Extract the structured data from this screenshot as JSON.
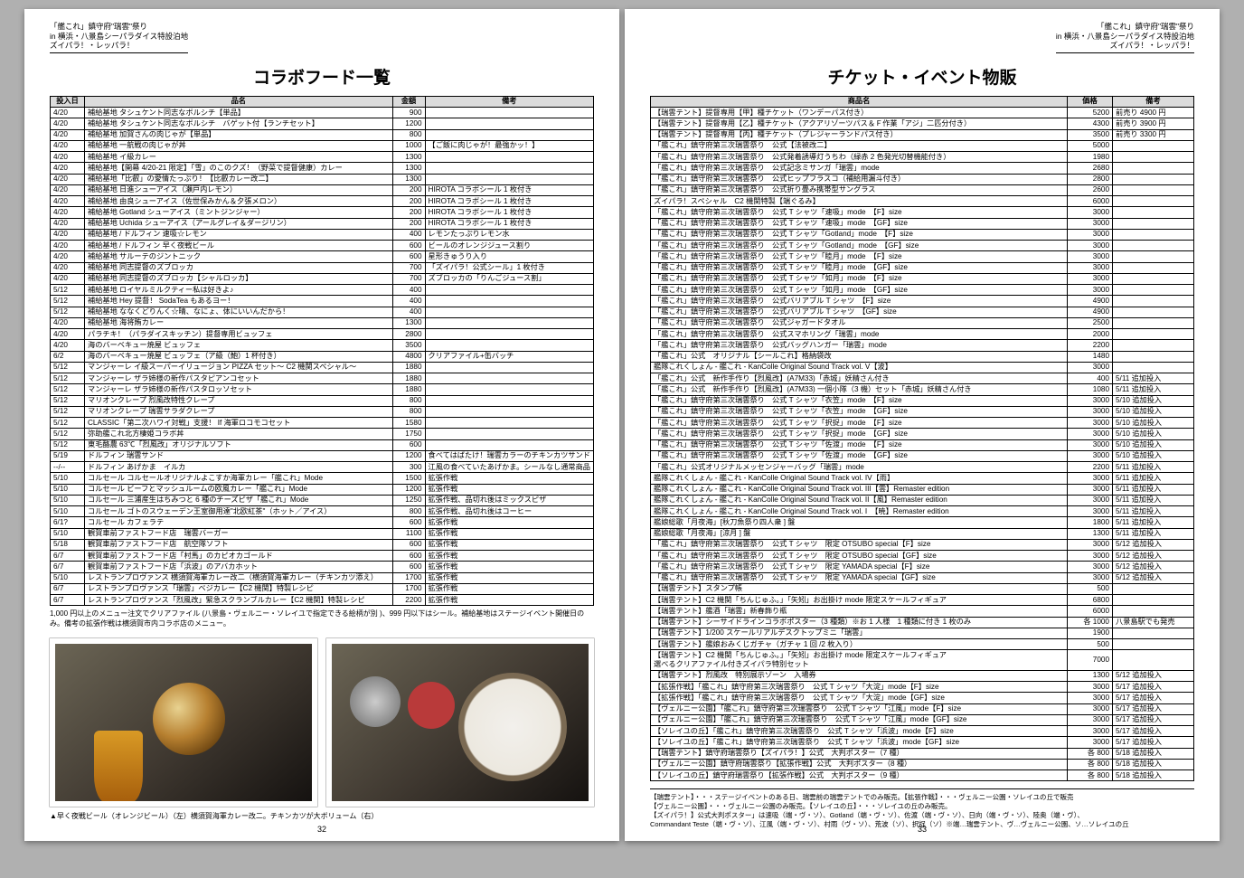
{
  "header": {
    "l1": "「艦これ」鎮守府\"瑞雲\"祭り",
    "l2": "in 横浜・八景島シーパラダイス特設泊地",
    "l3": "ズイパラ！・レッパラ！"
  },
  "left": {
    "title": "コラボフード一覧",
    "cols": [
      "投入日",
      "品名",
      "金額",
      "備考"
    ],
    "rows": [
      [
        "4/20",
        "補給基地 タシュケント同志なボルシチ【単品】",
        "900",
        ""
      ],
      [
        "4/20",
        "補給基地 タシュケント同志なボルシチ　バゲット付【ランチセット】",
        "1200",
        ""
      ],
      [
        "4/20",
        "補給基地 加賀さんの肉じゃが【単品】",
        "800",
        ""
      ],
      [
        "4/20",
        "補給基地 一航戦の肉じゃが丼",
        "1000",
        "【ご飯に肉じゃが！最強かッ！】"
      ],
      [
        "4/20",
        "補給基地 イ級カレー",
        "1300",
        ""
      ],
      [
        "4/20",
        "補給基地【開幕 4/20-21 限定】「雪」のこのクズ！（野菜で提督健康）カレー",
        "1300",
        ""
      ],
      [
        "4/20",
        "補給基地「比叡」の愛情たっぷり！【比叡カレー改二】",
        "1300",
        ""
      ],
      [
        "4/20",
        "補給基地 日進シューアイス（瀬戸内レモン）",
        "200",
        "HIROTA コラボシール 1 枚付き"
      ],
      [
        "4/20",
        "補給基地 由良シューアイス（佐世保みかん＆夕張メロン）",
        "200",
        "HIROTA コラボシール 1 枚付き"
      ],
      [
        "4/20",
        "補給基地 Gotland シューアイス（ミントジンジャー）",
        "200",
        "HIROTA コラボシール 1 枚付き"
      ],
      [
        "4/20",
        "補給基地 Uchida シューアイス（アールグレイ＆ダージリン）",
        "200",
        "HIROTA コラボシール 1 枚付き"
      ],
      [
        "4/20",
        "補給基地 / ドルフィン 速吸☆レモン",
        "400",
        "レモンたっぷりレモン水"
      ],
      [
        "4/20",
        "補給基地 / ドルフィン 早く夜戦ビール",
        "600",
        "ビールのオレンジジュース割り"
      ],
      [
        "4/20",
        "補給基地 サルーテのジントニック",
        "600",
        "星形きゅうり入り"
      ],
      [
        "4/20",
        "補給基地 同志提督のズブロッカ",
        "700",
        "「ズイパラ！公式シール」1 枚付き"
      ],
      [
        "4/20",
        "補給基地 同志提督のズブロッカ【シャルロッカ】",
        "700",
        "ズブロッカの「りんごジュース割」"
      ],
      [
        "5/12",
        "補給基地 ロイヤルミルクティー私は好きよ♪",
        "400",
        ""
      ],
      [
        "5/12",
        "補給基地 Hey 提督！ SodaTea もあるヨー！",
        "400",
        ""
      ],
      [
        "5/12",
        "補給基地 ななくどりんく☆晴、なにょ、体にいいんだから！",
        "400",
        ""
      ],
      [
        "4/20",
        "補給基地 海将賄カレー",
        "1300",
        ""
      ],
      [
        "4/20",
        "パラチキ！（パラダイスキッチン）提督専用ビュッフェ",
        "2800",
        ""
      ],
      [
        "4/20",
        "海のバーベキュー焼屋 ビュッフェ",
        "3500",
        ""
      ],
      [
        "6/2",
        "海のバーベキュー焼屋 ビュッフェ（ア級（鮑）1 杯付き）",
        "4800",
        "クリアファイル+缶バッチ"
      ],
      [
        "5/12",
        "マンジャーレ イ級スーパーイリュージョン PIZZA セット〜 C2 機関スペシャル〜",
        "1880",
        ""
      ],
      [
        "5/12",
        "マンジャーレ ザラ姉様の新作パスタピアンコセット",
        "1880",
        ""
      ],
      [
        "5/12",
        "マンジャーレ ザラ姉様の新作パスタロッソセット",
        "1880",
        ""
      ],
      [
        "5/12",
        "マリオンクレープ 烈風改特性クレープ",
        "800",
        ""
      ],
      [
        "5/12",
        "マリオンクレープ 瑞雲サラダクレープ",
        "800",
        ""
      ],
      [
        "5/12",
        "CLASSIC「第二次ハワイ対戦」支援！ If 海軍ロコモコセット",
        "1580",
        ""
      ],
      [
        "5/12",
        "弥助艦これ北方棲姫コラボ丼",
        "1750",
        ""
      ],
      [
        "5/12",
        "東毛酪農 63℃「烈風改」オリジナルソフト",
        "600",
        ""
      ],
      [
        "5/19",
        "ドルフィン 瑞雲サンド",
        "1200",
        "食べてはばたけ！瑞雲カラーのチキンカツサンド"
      ],
      [
        "--/--",
        "ドルフィン あげかま　イルカ",
        "300",
        "江風の食べていたあげかま。シールなし通常商品"
      ],
      [
        "5/10",
        "コルセール コルセールオリジナルよこすか海軍カレー「艦これ」Mode",
        "1500",
        "拡張作戦"
      ],
      [
        "5/10",
        "コルセール ビーフとマッシュルームの欧風カレー「艦これ」Mode",
        "1200",
        "拡張作戦"
      ],
      [
        "5/10",
        "コルセール 三浦産生はちみつと 6 種のチーズピザ「艦これ」Mode",
        "1250",
        "拡張作戦、品切れ後はミックスピザ"
      ],
      [
        "5/10",
        "コルセール ゴトのスウェーデン王室御用達\"北欧紅茶\"（ホット／アイス）",
        "800",
        "拡張作戦、品切れ後はコーヒー"
      ],
      [
        "6/1?",
        "コルセール カフェラテ",
        "600",
        "拡張作戦"
      ],
      [
        "5/10",
        "観賀車前ファストフード店　瑞雲バーガー",
        "1100",
        "拡張作戦"
      ],
      [
        "5/18",
        "観賀車前ファストフード店　航空隊ソフト",
        "600",
        "拡張作戦"
      ],
      [
        "6/7",
        "観賀車前ファストフード店「村馬」のカピオカゴールド",
        "600",
        "拡張作戦"
      ],
      [
        "6/7",
        "観賀車前ファストフード店「浜波」のアバカホット",
        "600",
        "拡張作戦"
      ],
      [
        "5/10",
        "レストランプロヴァンス 横須賀海軍カレー改二（横須賀海軍カレー（チキンカツ添え）",
        "1700",
        "拡張作戦"
      ],
      [
        "6/7",
        "レストランプロヴァンス「瑞雲」ベジカレー【C2 機関】特製レシピ",
        "1700",
        "拡張作戦"
      ],
      [
        "6/7",
        "レストランプロヴァンス「烈風改」緊急スクランブルカレー【C2 機関】特製レシピ",
        "2200",
        "拡張作戦"
      ]
    ],
    "footnote": "1,000 円以上のメニュー注文でクリアファイル (八景島・ヴェルニー・ソレイユで指定できる絵柄が別 )、999 円以下はシール。補給基地はステージイベント開催日のみ。備考の拡張作戦は横須賀市内コラボ店のメニュー。",
    "caption": "▲早く夜戦ビール（オレンジビール）（左）横須賀海軍カレー改二。チキンカツが大ボリューム（右）",
    "pagenum": "32"
  },
  "right": {
    "title": "チケット・イベント物販",
    "cols": [
      "商品名",
      "価格",
      "備考"
    ],
    "rows": [
      [
        "【瑞雲テント】提督専用【甲】種チケット（ワンデーパス付き）",
        "5200",
        "前売り 4900 円"
      ],
      [
        "【瑞雲テント】提督専用【乙】種チケット（アクアリゾーツパス＆Ｆ作業「アジ」二匹分付き）",
        "4300",
        "前売り 3900 円"
      ],
      [
        "【瑞雲テント】提督専用【丙】種チケット（プレジャーランドパス付き）",
        "3500",
        "前売り 3300 円"
      ],
      [
        "「艦これ」鎮守府第三次瑞雲祭り　公式【法被改二】",
        "5000",
        ""
      ],
      [
        "「艦これ」鎮守府第三次瑞雲祭り　公式発着誘導灯うちわ（緑赤 2 色発光切替機能付き）",
        "1980",
        ""
      ],
      [
        "「艦これ」鎮守府第三次瑞雲祭り　公式記念ミサンガ「瑞雲」mode",
        "2680",
        ""
      ],
      [
        "「艦これ」鎮守府第三次瑞雲祭り　公式ヒップフラスコ（補給用漏斗付き）",
        "2800",
        ""
      ],
      [
        "「艦これ」鎮守府第三次瑞雲祭り　公式折り畳み携帯型サングラス",
        "2600",
        ""
      ],
      [
        "ズイパラ！スペシャル　C2 機関特製【端ぐるみ】",
        "6000",
        ""
      ],
      [
        "「艦これ」鎮守府第三次瑞雲祭り　公式 T シャツ「速吸」mode　【F】size",
        "3000",
        ""
      ],
      [
        "「艦これ」鎮守府第三次瑞雲祭り　公式 T シャツ「速吸」mode　【GF】size",
        "3000",
        ""
      ],
      [
        "「艦これ」鎮守府第三次瑞雲祭り　公式 T シャツ「Gotland」mode　【F】size",
        "3000",
        ""
      ],
      [
        "「艦これ」鎮守府第三次瑞雲祭り　公式 T シャツ「Gotland」mode　【GF】size",
        "3000",
        ""
      ],
      [
        "「艦これ」鎮守府第三次瑞雲祭り　公式 T シャツ「睦月」mode　【F】size",
        "3000",
        ""
      ],
      [
        "「艦これ」鎮守府第三次瑞雲祭り　公式 T シャツ「睦月」mode　【GF】size",
        "3000",
        ""
      ],
      [
        "「艦これ」鎮守府第三次瑞雲祭り　公式 T シャツ「如月」mode　【F】size",
        "3000",
        ""
      ],
      [
        "「艦これ」鎮守府第三次瑞雲祭り　公式 T シャツ「如月」mode　【GF】size",
        "3000",
        ""
      ],
      [
        "「艦これ」鎮守府第三次瑞雲祭り　公式バリアブル T シャツ　【F】size",
        "4900",
        ""
      ],
      [
        "「艦これ」鎮守府第三次瑞雲祭り　公式バリアブル T シャツ　【GF】size",
        "4900",
        ""
      ],
      [
        "「艦これ」鎮守府第三次瑞雲祭り　公式ジャガードタオル",
        "2500",
        ""
      ],
      [
        "「艦これ」鎮守府第三次瑞雲祭り　公式スマホリング「瑞雲」mode",
        "2000",
        ""
      ],
      [
        "「艦これ」鎮守府第三次瑞雲祭り　公式バッグハンガー「瑞雲」mode",
        "2200",
        ""
      ],
      [
        "「艦これ」公式　オリジナル【シールこれ】格納袋改",
        "1480",
        ""
      ],
      [
        "艦隊これくしょん - 艦これ - KanColle Original Sound Track vol. V【波】",
        "3000",
        ""
      ],
      [
        "「艦これ」公式　新作手作り【烈風改】(A7M33)「赤城」妖精さん付き",
        "400",
        "5/11 追加投入"
      ],
      [
        "「艦これ」公式　新作手作り【烈風改】(A7M33) 一個小隊（3 機）セット「赤城」妖精さん付き",
        "1080",
        "5/11 追加投入"
      ],
      [
        "「艦これ」鎮守府第三次瑞雲祭り　公式 T シャツ「衣笠」mode　【F】size",
        "3000",
        "5/10 追加投入"
      ],
      [
        "「艦これ」鎮守府第三次瑞雲祭り　公式 T シャツ「衣笠」mode　【GF】size",
        "3000",
        "5/10 追加投入"
      ],
      [
        "「艦これ」鎮守府第三次瑞雲祭り　公式 T シャツ「択捉」mode　【F】size",
        "3000",
        "5/10 追加投入"
      ],
      [
        "「艦これ」鎮守府第三次瑞雲祭り　公式 T シャツ「択捉」mode　【GF】size",
        "3000",
        "5/10 追加投入"
      ],
      [
        "「艦これ」鎮守府第三次瑞雲祭り　公式 T シャツ「佐渡」mode　【F】size",
        "3000",
        "5/10 追加投入"
      ],
      [
        "「艦これ」鎮守府第三次瑞雲祭り　公式 T シャツ「佐渡」mode　【GF】size",
        "3000",
        "5/10 追加投入"
      ],
      [
        "「艦これ」公式オリジナルメッセンジャーバッグ「瑞雲」mode",
        "2200",
        "5/11 追加投入"
      ],
      [
        "艦隊これくしょん - 艦これ - KanColle Original Sound Track vol. IV【雨】",
        "3000",
        "5/11 追加投入"
      ],
      [
        "艦隊これくしょん - 艦これ - KanColle Original Sound Track vol. III【雲】Remaster edition",
        "3000",
        "5/11 追加投入"
      ],
      [
        "艦隊これくしょん - 艦これ - KanColle Original Sound Track vol. II【風】Remaster edition",
        "3000",
        "5/11 追加投入"
      ],
      [
        "艦隊これくしょん - 艦これ - KanColle Original Sound Track vol. I　【暁】Remaster edition",
        "3000",
        "5/11 追加投入"
      ],
      [
        "艦娘総歌「月夜海」[秋刀魚祭り四人衆 ] 盤",
        "1800",
        "5/11 追加投入"
      ],
      [
        "艦娘総歌「月夜海」[涼月 ] 盤",
        "1300",
        "5/11 追加投入"
      ],
      [
        "「艦これ」鎮守府第三次瑞雲祭り　公式 T シャツ　限定 OTSUBO special【F】size",
        "3000",
        "5/12 追加投入"
      ],
      [
        "「艦これ」鎮守府第三次瑞雲祭り　公式 T シャツ　限定 OTSUBO special【GF】size",
        "3000",
        "5/12 追加投入"
      ],
      [
        "「艦これ」鎮守府第三次瑞雲祭り　公式 T シャツ　限定 YAMADA special【F】size",
        "3000",
        "5/12 追加投入"
      ],
      [
        "「艦これ」鎮守府第三次瑞雲祭り　公式 T シャツ　限定 YAMADA special【GF】size",
        "3000",
        "5/12 追加投入"
      ],
      [
        "【瑞雲テント】スタンプ帳",
        "500",
        ""
      ],
      [
        "【瑞雲テント】C2 機関「ちんじゅふ。」「矢矧」お出掛け mode 限定スケールフィギュア",
        "6800",
        ""
      ],
      [
        "【瑞雲テント】艦酒「瑞雲」新春飾り瓶",
        "6000",
        ""
      ],
      [
        "【瑞雲テント】シーサイドラインコラボポスター（3 種類）※お 1 人様　1 種類に付き 1 枚のみ",
        "各 1000",
        "八景島駅でも発売"
      ],
      [
        "【瑞雲テント】1/200 スケールリアルデスクトップミニ「瑞雲」",
        "1900",
        ""
      ],
      [
        "【瑞雲テント】艦娘おみくじガチャ（ガチャ 1 回 /2 枚入り）",
        "500",
        ""
      ],
      [
        "【瑞雲テント】C2 機関「ちんじゅふ。」「矢矧」お出掛け mode 限定スケールフィギュア\n選べるクリアファイル付きズイパラ特別セット",
        "7000",
        ""
      ],
      [
        "【瑞雲テント】烈風改　特別展示ゾーン　入場券",
        "1300",
        "5/12 追加投入"
      ],
      [
        "【拡張作戦】「艦これ」鎮守府第三次瑞雲祭り　公式 T シャツ「大淀」mode【F】size",
        "3000",
        "5/17 追加投入"
      ],
      [
        "【拡張作戦】「艦これ」鎮守府第三次瑞雲祭り　公式 T シャツ「大淀」mode【GF】size",
        "3000",
        "5/17 追加投入"
      ],
      [
        "【ヴェルニー公園】「艦これ」鎮守府第三次瑞雲祭り　公式 T シャツ「江風」mode【F】size",
        "3000",
        "5/17 追加投入"
      ],
      [
        "【ヴェルニー公園】「艦これ」鎮守府第三次瑞雲祭り　公式 T シャツ「江風」mode【GF】size",
        "3000",
        "5/17 追加投入"
      ],
      [
        "【ソレイユの丘】「艦これ」鎮守府第三次瑞雲祭り　公式 T シャツ「浜波」mode【F】size",
        "3000",
        "5/17 追加投入"
      ],
      [
        "【ソレイユの丘】「艦これ」鎮守府第三次瑞雲祭り　公式 T シャツ「浜波」mode【GF】size",
        "3000",
        "5/17 追加投入"
      ],
      [
        "【瑞雲テント】鎮守府瑞雲祭り【ズイパラ！】公式　大判ポスター（7 種）",
        "各 800",
        "5/18 追加投入"
      ],
      [
        "【ヴェルニー公園】鎮守府瑞雲祭り【拡張作戦】公式　大判ポスター（8 種）",
        "各 800",
        "5/18 追加投入"
      ],
      [
        "【ソレイユの丘】鎮守府瑞雲祭り【拡張作戦】公式　大判ポスター（9 種）",
        "各 800",
        "5/18 追加投入"
      ]
    ],
    "small_note": "【瑞雲テント】・・・ステージイベントのある日、瑞雲前の瑞雲テントでのみ販売。【拡張作戦】・・・ヴェルニー公園・ソレイユの丘で販売\n【ヴェルニー公園】・・・ヴェルニー公園のみ販売。【ソレイユの丘】・・・ソレイユの丘のみ販売。\n【ズイパラ！】公式大判ポスター」は速吸（端・ヴ・ソ）、Gotland（端・ヴ・ソ）、佐渡（端・ヴ・ソ）、日向（端・ヴ・ソ）、陸奥（端・ヴ）、\nCommandant Teste（端・ヴ・ソ）、江風（端・ヴ・ソ）、村雨（ヴ・ソ）、荒波（ソ）、択捉（ソ）※端…瑞雲テント、ヴ…ヴェルニー公園、ソ…ソレイユの丘",
    "pagenum": "33"
  }
}
